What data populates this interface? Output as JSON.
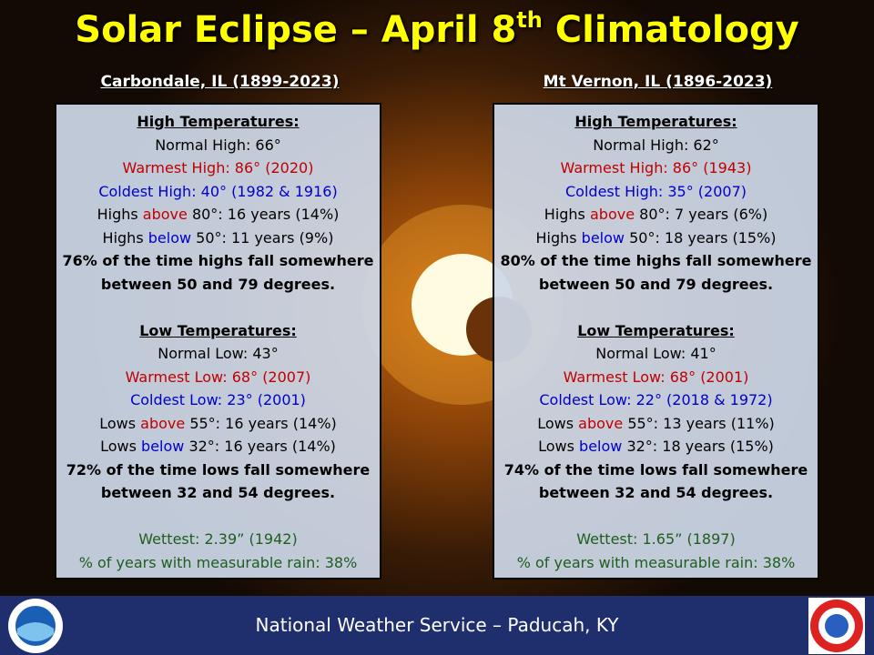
{
  "title": [
    "Solar Eclipse – April 8",
    "th",
    " Climatology"
  ],
  "panels": [
    {
      "heading": "Carbondale, IL (1899-2023)",
      "sections": [
        {
          "lines": [
            {
              "underline": true,
              "bold": true,
              "segments": [
                {
                  "text": "High Temperatures:",
                  "color": "#000000"
                }
              ]
            },
            {
              "segments": [
                {
                  "text": "Normal High: 66°",
                  "color": "#000000"
                }
              ]
            },
            {
              "segments": [
                {
                  "text": "Warmest High: 86° (2020)",
                  "color": "#c00000"
                }
              ]
            },
            {
              "segments": [
                {
                  "text": "Coldest High: 40° (1982 & 1916)",
                  "color": "#0000c8"
                }
              ]
            },
            {
              "segments": [
                {
                  "text": "Highs ",
                  "color": "#000000"
                },
                {
                  "text": "above",
                  "color": "#c00000"
                },
                {
                  "text": " 80°: 16 years (14%)",
                  "color": "#000000"
                }
              ]
            },
            {
              "segments": [
                {
                  "text": "Highs ",
                  "color": "#000000"
                },
                {
                  "text": "below",
                  "color": "#0000c8"
                },
                {
                  "text": " 50°: 11 years (9%)",
                  "color": "#000000"
                }
              ]
            },
            {
              "bold": true,
              "segments": [
                {
                  "text": "76% of the time highs fall somewhere",
                  "color": "#000000"
                }
              ]
            },
            {
              "bold": true,
              "segments": [
                {
                  "text": "between 50 and 79 degrees.",
                  "color": "#000000"
                }
              ]
            }
          ]
        },
        {
          "lines": [
            {
              "underline": true,
              "bold": true,
              "segments": [
                {
                  "text": "Low Temperatures:",
                  "color": "#000000"
                }
              ]
            },
            {
              "segments": [
                {
                  "text": "Normal Low: 43°",
                  "color": "#000000"
                }
              ]
            },
            {
              "segments": [
                {
                  "text": "Warmest Low: 68° (2007)",
                  "color": "#c00000"
                }
              ]
            },
            {
              "segments": [
                {
                  "text": "Coldest Low: 23° (2001)",
                  "color": "#0000c8"
                }
              ]
            },
            {
              "segments": [
                {
                  "text": "Lows ",
                  "color": "#000000"
                },
                {
                  "text": "above",
                  "color": "#c00000"
                },
                {
                  "text": " 55°: 16 years (14%)",
                  "color": "#000000"
                }
              ]
            },
            {
              "segments": [
                {
                  "text": "Lows ",
                  "color": "#000000"
                },
                {
                  "text": "below",
                  "color": "#0000c8"
                },
                {
                  "text": " 32°: 16 years (14%)",
                  "color": "#000000"
                }
              ]
            },
            {
              "bold": true,
              "segments": [
                {
                  "text": "72% of the time lows fall somewhere",
                  "color": "#000000"
                }
              ]
            },
            {
              "bold": true,
              "segments": [
                {
                  "text": "between 32 and 54 degrees.",
                  "color": "#000000"
                }
              ]
            }
          ]
        },
        {
          "lines": [
            {
              "segments": [
                {
                  "text": "Wettest: 2.39” (1942)",
                  "color": "#1e5e1e"
                }
              ]
            },
            {
              "segments": [
                {
                  "text": "% of years with measurable rain: 38%",
                  "color": "#1e5e1e"
                }
              ]
            }
          ]
        }
      ]
    },
    {
      "heading": "Mt Vernon, IL (1896-2023)",
      "sections": [
        {
          "lines": [
            {
              "underline": true,
              "bold": true,
              "segments": [
                {
                  "text": "High Temperatures:",
                  "color": "#000000"
                }
              ]
            },
            {
              "segments": [
                {
                  "text": "Normal High: 62°",
                  "color": "#000000"
                }
              ]
            },
            {
              "segments": [
                {
                  "text": "Warmest High: 86° (1943)",
                  "color": "#c00000"
                }
              ]
            },
            {
              "segments": [
                {
                  "text": "Coldest High: 35° (2007)",
                  "color": "#0000c8"
                }
              ]
            },
            {
              "segments": [
                {
                  "text": "Highs ",
                  "color": "#000000"
                },
                {
                  "text": "above",
                  "color": "#c00000"
                },
                {
                  "text": " 80°: 7 years (6%)",
                  "color": "#000000"
                }
              ]
            },
            {
              "segments": [
                {
                  "text": "Highs ",
                  "color": "#000000"
                },
                {
                  "text": "below",
                  "color": "#0000c8"
                },
                {
                  "text": " 50°: 18 years (15%)",
                  "color": "#000000"
                }
              ]
            },
            {
              "bold": true,
              "segments": [
                {
                  "text": "80% of the time highs fall somewhere",
                  "color": "#000000"
                }
              ]
            },
            {
              "bold": true,
              "segments": [
                {
                  "text": "between 50 and 79 degrees.",
                  "color": "#000000"
                }
              ]
            }
          ]
        },
        {
          "lines": [
            {
              "underline": true,
              "bold": true,
              "segments": [
                {
                  "text": "Low Temperatures:",
                  "color": "#000000"
                }
              ]
            },
            {
              "segments": [
                {
                  "text": "Normal Low: 41°",
                  "color": "#000000"
                }
              ]
            },
            {
              "segments": [
                {
                  "text": "Warmest Low: 68° (2001)",
                  "color": "#c00000"
                }
              ]
            },
            {
              "segments": [
                {
                  "text": "Coldest Low: 22° (2018 & 1972)",
                  "color": "#0000c8"
                }
              ]
            },
            {
              "segments": [
                {
                  "text": "Lows ",
                  "color": "#000000"
                },
                {
                  "text": "above",
                  "color": "#c00000"
                },
                {
                  "text": " 55°: 13 years (11%)",
                  "color": "#000000"
                }
              ]
            },
            {
              "segments": [
                {
                  "text": "Lows ",
                  "color": "#000000"
                },
                {
                  "text": "below",
                  "color": "#0000c8"
                },
                {
                  "text": " 32°: 18 years (15%)",
                  "color": "#000000"
                }
              ]
            },
            {
              "bold": true,
              "segments": [
                {
                  "text": "74% of the time lows fall somewhere",
                  "color": "#000000"
                }
              ]
            },
            {
              "bold": true,
              "segments": [
                {
                  "text": "between 32 and 54 degrees.",
                  "color": "#000000"
                }
              ]
            }
          ]
        },
        {
          "lines": [
            {
              "segments": [
                {
                  "text": "Wettest: 1.65” (1897)",
                  "color": "#1e5e1e"
                }
              ]
            },
            {
              "segments": [
                {
                  "text": "% of years with measurable rain: 38%",
                  "color": "#1e5e1e"
                }
              ]
            }
          ]
        }
      ]
    }
  ],
  "footer": "National Weather Service – Paducah, KY"
}
